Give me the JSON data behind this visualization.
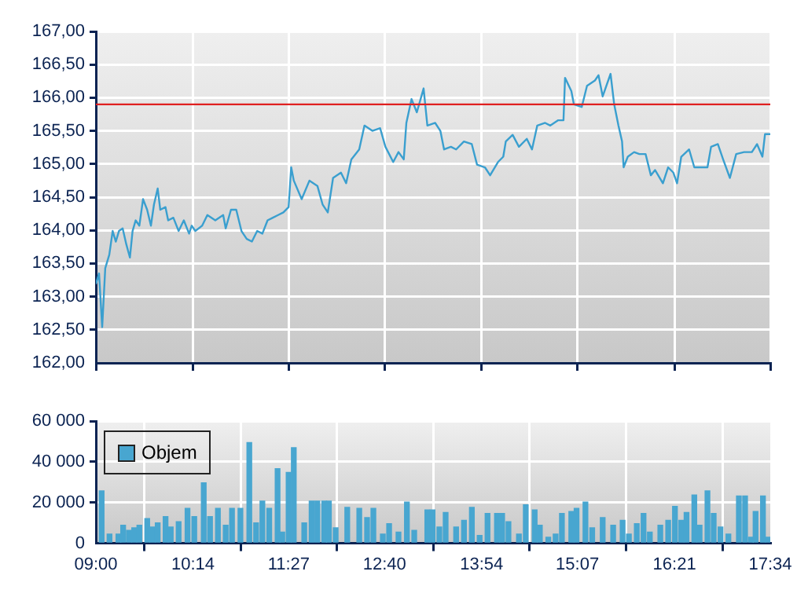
{
  "chart_data": [
    {
      "type": "line",
      "color": "#3a9fcf",
      "grid": true,
      "tick_labels": "y",
      "xlim": [
        9,
        17.567
      ],
      "xticks": [
        {
          "value": 9,
          "label": null
        },
        {
          "value": 10.233,
          "label": null
        },
        {
          "value": 11.45,
          "label": null
        },
        {
          "value": 12.667,
          "label": null
        },
        {
          "value": 13.9,
          "label": null
        },
        {
          "value": 15.117,
          "label": null
        },
        {
          "value": 16.35,
          "label": null
        },
        {
          "value": 17.567,
          "label": null
        }
      ],
      "ylim": [
        162,
        167
      ],
      "yticks": [
        {
          "value": 162,
          "label": "162,00"
        },
        {
          "value": 162.5,
          "label": "162,50"
        },
        {
          "value": 163,
          "label": "163,00"
        },
        {
          "value": 163.5,
          "label": "163,50"
        },
        {
          "value": 164,
          "label": "164,00"
        },
        {
          "value": 164.5,
          "label": "164,50"
        },
        {
          "value": 165,
          "label": "165,00"
        },
        {
          "value": 165.5,
          "label": "165,50"
        },
        {
          "value": 166,
          "label": "166,00"
        },
        {
          "value": 166.5,
          "label": "166,50"
        },
        {
          "value": 167,
          "label": "167,00"
        }
      ],
      "ref_lines": [
        {
          "axis": "y",
          "value": 165.9,
          "color": "#e02020"
        }
      ],
      "x": [
        9.0,
        9.04,
        9.08,
        9.119,
        9.17,
        9.213,
        9.253,
        9.293,
        9.34,
        9.386,
        9.432,
        9.466,
        9.505,
        9.552,
        9.599,
        9.651,
        9.699,
        9.738,
        9.785,
        9.818,
        9.884,
        9.918,
        9.984,
        10.051,
        10.117,
        10.184,
        10.217,
        10.263,
        10.35,
        10.416,
        10.517,
        10.617,
        10.649,
        10.716,
        10.783,
        10.849,
        10.916,
        10.982,
        11.049,
        11.115,
        11.181,
        11.248,
        11.315,
        11.382,
        11.448,
        11.481,
        11.514,
        11.614,
        11.713,
        11.814,
        11.88,
        11.946,
        12.013,
        12.113,
        12.179,
        12.245,
        12.345,
        12.412,
        12.512,
        12.611,
        12.678,
        12.777,
        12.844,
        12.911,
        12.944,
        13.01,
        13.077,
        13.163,
        13.211,
        13.31,
        13.376,
        13.423,
        13.51,
        13.576,
        13.675,
        13.775,
        13.842,
        13.942,
        14.008,
        14.108,
        14.175,
        14.207,
        14.294,
        14.374,
        14.474,
        14.54,
        14.607,
        14.707,
        14.773,
        14.873,
        14.94,
        14.96,
        15.04,
        15.072,
        15.172,
        15.239,
        15.339,
        15.385,
        15.438,
        15.538,
        15.584,
        15.638,
        15.684,
        15.704,
        15.757,
        15.837,
        15.904,
        15.983,
        16.05,
        16.103,
        16.203,
        16.269,
        16.336,
        16.383,
        16.436,
        16.536,
        16.602,
        16.702,
        16.769,
        16.815,
        16.901,
        16.968,
        17.054,
        17.134,
        17.234,
        17.333,
        17.399,
        17.467,
        17.5,
        17.567
      ],
      "values": [
        163.19,
        163.35,
        162.54,
        163.43,
        163.63,
        163.99,
        163.83,
        163.99,
        164.03,
        163.79,
        163.59,
        163.99,
        164.15,
        164.07,
        164.47,
        164.31,
        164.07,
        164.39,
        164.63,
        164.31,
        164.35,
        164.15,
        164.19,
        163.99,
        164.15,
        163.95,
        164.07,
        163.99,
        164.07,
        164.23,
        164.15,
        164.23,
        164.03,
        164.31,
        164.31,
        163.99,
        163.87,
        163.83,
        163.99,
        163.95,
        164.15,
        164.19,
        164.23,
        164.27,
        164.35,
        164.95,
        164.75,
        164.47,
        164.75,
        164.67,
        164.39,
        164.27,
        164.79,
        164.87,
        164.71,
        165.07,
        165.22,
        165.58,
        165.5,
        165.54,
        165.26,
        165.03,
        165.18,
        165.07,
        165.62,
        165.98,
        165.78,
        166.14,
        165.58,
        165.62,
        165.5,
        165.22,
        165.26,
        165.22,
        165.34,
        165.3,
        164.99,
        164.95,
        164.83,
        165.03,
        165.11,
        165.34,
        165.44,
        165.26,
        165.38,
        165.22,
        165.58,
        165.62,
        165.58,
        165.66,
        165.66,
        166.3,
        166.1,
        165.9,
        165.86,
        166.18,
        166.26,
        166.34,
        166.02,
        166.36,
        165.9,
        165.58,
        165.34,
        164.95,
        165.11,
        165.18,
        165.15,
        165.15,
        164.83,
        164.91,
        164.71,
        164.95,
        164.87,
        164.71,
        165.11,
        165.22,
        164.95,
        164.95,
        164.95,
        165.26,
        165.3,
        165.07,
        164.79,
        165.15,
        165.18,
        165.18,
        165.3,
        165.11,
        165.45,
        165.45
      ]
    },
    {
      "type": "bar",
      "grid": true,
      "legend": "top left",
      "xlim": [
        9,
        17.567
      ],
      "xticks": [
        {
          "value": 9,
          "label": "09:00"
        },
        {
          "value": 10.233,
          "label": "10:14"
        },
        {
          "value": 11.45,
          "label": "11:27"
        },
        {
          "value": 12.667,
          "label": "12:40"
        },
        {
          "value": 13.9,
          "label": "13:54"
        },
        {
          "value": 15.117,
          "label": "15:07"
        },
        {
          "value": 16.35,
          "label": "16:21"
        },
        {
          "value": 17.567,
          "label": "17:34"
        }
      ],
      "ylim": [
        0,
        60000
      ],
      "yticks": [
        0,
        {
          "value": 20000,
          "label": "20 000"
        },
        {
          "value": 40000,
          "label": "40 000"
        },
        {
          "value": 60000,
          "label": "60 000"
        }
      ],
      "x": [
        9.073,
        9.173,
        9.286,
        9.346,
        9.419,
        9.486,
        9.552,
        9.652,
        9.718,
        9.785,
        9.885,
        9.951,
        10.051,
        10.164,
        10.25,
        10.37,
        10.45,
        10.55,
        10.649,
        10.729,
        10.836,
        10.949,
        11.035,
        11.115,
        11.202,
        11.308,
        11.368,
        11.448,
        11.514,
        11.647,
        11.74,
        11.813,
        11.9,
        11.96,
        12.046,
        12.193,
        12.346,
        12.445,
        12.525,
        12.645,
        12.725,
        12.844,
        12.951,
        13.044,
        13.21,
        13.277,
        13.363,
        13.443,
        13.576,
        13.676,
        13.776,
        13.875,
        13.975,
        14.095,
        14.161,
        14.241,
        14.374,
        14.461,
        14.574,
        14.64,
        14.747,
        14.84,
        14.92,
        15.039,
        15.106,
        15.219,
        15.305,
        15.438,
        15.571,
        15.691,
        15.771,
        15.871,
        15.957,
        16.037,
        16.17,
        16.27,
        16.356,
        16.436,
        16.503,
        16.602,
        16.669,
        16.769,
        16.848,
        16.935,
        17.035,
        17.168,
        17.247,
        17.321,
        17.38,
        17.474,
        17.54
      ],
      "series": [
        {
          "name": "Objem",
          "color": "#48a6d0",
          "values": [
            25700,
            4500,
            4500,
            8800,
            6300,
            7600,
            8800,
            12100,
            8000,
            10000,
            13100,
            8000,
            10600,
            17100,
            13100,
            29700,
            13100,
            17100,
            8800,
            17100,
            17100,
            49400,
            10000,
            20700,
            17100,
            36600,
            5500,
            34800,
            46900,
            10000,
            20700,
            20700,
            20700,
            20700,
            7600,
            17600,
            17100,
            12600,
            17100,
            4500,
            9600,
            5500,
            20200,
            6300,
            16400,
            16400,
            8000,
            15100,
            8000,
            11300,
            17600,
            3800,
            14600,
            14600,
            14600,
            10600,
            4500,
            18900,
            16400,
            8800,
            3000,
            4500,
            14600,
            15600,
            17100,
            20200,
            7600,
            12600,
            8800,
            11300,
            4500,
            9600,
            14600,
            5500,
            8800,
            11300,
            18100,
            11300,
            15100,
            23700,
            8800,
            25700,
            14600,
            8000,
            4500,
            23200,
            23200,
            3000,
            15600,
            23200,
            3000
          ]
        }
      ]
    }
  ]
}
